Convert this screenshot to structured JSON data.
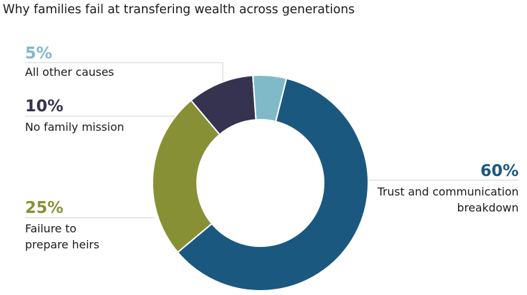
{
  "chart_data": {
    "type": "pie",
    "donut": true,
    "title": "Why families fail at transfering wealth across generations",
    "slices": [
      {
        "label": "Trust and communication breakdown",
        "label_lines": [
          "Trust and communication",
          "breakdown"
        ],
        "value": 60,
        "display": "60%",
        "color": "#1b5880"
      },
      {
        "label": "Failure to prepare heirs",
        "label_lines": [
          "Failure to",
          "prepare heirs"
        ],
        "value": 25,
        "display": "25%",
        "color": "#889035"
      },
      {
        "label": "No family mission",
        "label_lines": [
          "No family mission"
        ],
        "value": 10,
        "display": "10%",
        "color": "#35334f"
      },
      {
        "label": "All other causes",
        "label_lines": [
          "All other causes"
        ],
        "value": 5,
        "display": "5%",
        "color": "#80bac8"
      }
    ]
  }
}
